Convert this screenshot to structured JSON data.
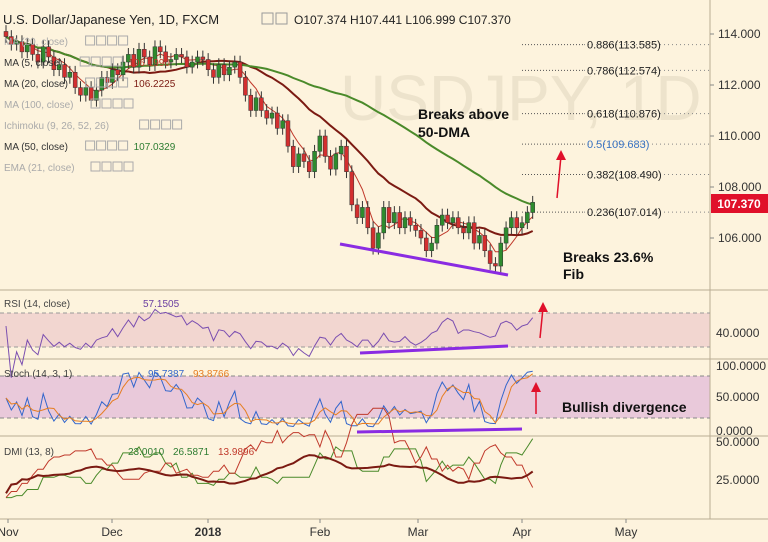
{
  "header": {
    "title": "U.S. Dollar/Japanese Yen, 1D, FXCM",
    "ohlc": "O107.374 H107.441 L106.999 C107.370"
  },
  "indicators": [
    {
      "name": "MA (20, close)",
      "value": "",
      "color": "#aaaaaa"
    },
    {
      "name": "MA (5, close)",
      "value": "106.1990",
      "color": "#c0392b"
    },
    {
      "name": "MA (20, close)",
      "value": "106.2225",
      "color": "#7b1a12"
    },
    {
      "name": "MA (100, close)",
      "value": "",
      "color": "#aaaaaa"
    },
    {
      "name": "Ichimoku (9, 26, 52, 26)",
      "value": "",
      "color": "#aaaaaa"
    },
    {
      "name": "MA (50, close)",
      "value": "107.0329",
      "color": "#2e7d32"
    },
    {
      "name": "EMA (21, close)",
      "value": "",
      "color": "#aaaaaa"
    }
  ],
  "price_axis": {
    "ticks": [
      "114.000",
      "112.000",
      "110.000",
      "108.000",
      "106.000"
    ],
    "last_price": "107.370"
  },
  "time_axis": {
    "labels": [
      "Nov",
      "Dec",
      "2018",
      "Feb",
      "Mar",
      "Apr",
      "May"
    ]
  },
  "fib_levels": [
    {
      "label": "0.886(113.585)",
      "value": 113.585
    },
    {
      "label": "0.786(112.574)",
      "value": 112.574
    },
    {
      "label": "0.618(110.876)",
      "value": 110.876
    },
    {
      "label": "0.5(109.683)",
      "value": 109.683
    },
    {
      "label": "0.382(108.490)",
      "value": 108.49
    },
    {
      "label": "0.236(107.014)",
      "value": 107.014
    }
  ],
  "annotations": {
    "breaks_50dma": [
      "Breaks above",
      "50-DMA"
    ],
    "breaks_fib": [
      "Breaks 23.6%",
      "Fib"
    ],
    "bullish_divergence": "Bullish divergence"
  },
  "rsi": {
    "name": "RSI (14, close)",
    "value": "57.1505",
    "ticks": [
      "40.0000"
    ]
  },
  "stoch": {
    "name": "Stoch (14, 3, 1)",
    "k": "95.7387",
    "d": "93.8766",
    "ticks": [
      "100.0000",
      "50.0000",
      "0.0000"
    ]
  },
  "dmi": {
    "name": "DMI (13, 8)",
    "v1": "23.0010",
    "v2": "26.5871",
    "v3": "13.9896",
    "ticks": [
      "50.0000",
      "25.0000"
    ]
  },
  "colors": {
    "bull": "#2e8b2e",
    "bear": "#d32f2f",
    "ma5": "#c0392b",
    "ma20": "#7b1a12",
    "ma50": "#4a8a2a",
    "purple": "#8a2be2",
    "arrow": "#e0102a",
    "rsi_band": "#f2d6d0",
    "stoch_band": "#e9c9da",
    "price_tag": "#e0102a"
  },
  "chart_data": {
    "type": "candlestick",
    "title": "U.S. Dollar/Japanese Yen, 1D, FXCM",
    "x_months": [
      "Nov",
      "Dec",
      "2018",
      "Feb",
      "Mar",
      "Apr",
      "May"
    ],
    "ylim": [
      104.2,
      115.3
    ],
    "closes": [
      113.9,
      113.6,
      113.7,
      113.3,
      113.6,
      113.2,
      112.9,
      113.5,
      113.1,
      112.6,
      112.8,
      112.3,
      112.5,
      111.9,
      111.6,
      111.9,
      111.4,
      111.8,
      112.3,
      112.1,
      112.6,
      112.4,
      112.9,
      113.2,
      112.7,
      113.4,
      113.1,
      112.8,
      113.5,
      113.3,
      112.9,
      113.0,
      113.2,
      113.1,
      112.7,
      112.9,
      113.1,
      113.0,
      112.6,
      112.3,
      112.8,
      112.4,
      112.7,
      112.9,
      112.3,
      111.6,
      111.0,
      111.5,
      111.0,
      110.7,
      110.9,
      110.3,
      110.6,
      109.6,
      108.8,
      109.3,
      109.0,
      108.6,
      109.4,
      110.0,
      109.2,
      108.7,
      109.3,
      109.6,
      108.6,
      107.3,
      106.8,
      107.2,
      106.4,
      105.6,
      106.2,
      107.2,
      106.6,
      107.0,
      106.4,
      106.8,
      106.5,
      106.3,
      106.0,
      105.5,
      105.8,
      106.5,
      106.9,
      106.6,
      106.8,
      106.4,
      106.2,
      106.6,
      105.8,
      106.1,
      105.5,
      105.0,
      104.9,
      105.8,
      106.4,
      106.8,
      106.4,
      106.6,
      107.0,
      107.4
    ]
  }
}
